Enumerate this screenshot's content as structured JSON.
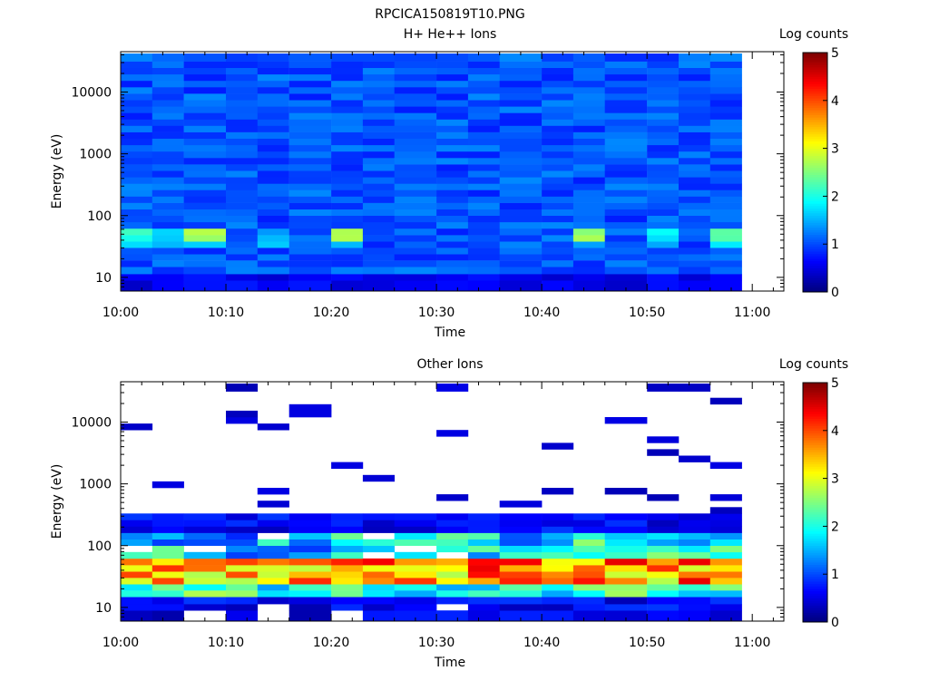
{
  "figure_title": "RPCICA150819T10.PNG",
  "chart_data": [
    {
      "type": "heatmap",
      "title": "H+ He++ Ions",
      "xlabel": "Time",
      "ylabel": "Energy (eV)",
      "y_scale": "log",
      "ylim": [
        6,
        45000
      ],
      "xlim": [
        "10:00",
        "11:03"
      ],
      "x_tick_labels": [
        "10:00",
        "10:10",
        "10:20",
        "10:30",
        "10:40",
        "10:50",
        "11:00"
      ],
      "y_tick_labels": [
        "10",
        "100",
        "1000",
        "10000"
      ],
      "time_bins": [
        "10:00",
        "10:03",
        "10:06",
        "10:10",
        "10:13",
        "10:16",
        "10:20",
        "10:23",
        "10:26",
        "10:30",
        "10:33",
        "10:36",
        "10:40",
        "10:43",
        "10:46",
        "10:50",
        "10:53",
        "10:56"
      ],
      "time_end": "10:59",
      "energy_bins_ev": [
        8,
        10,
        13,
        17,
        21,
        27,
        34,
        43,
        55,
        70,
        89,
        113,
        143,
        182,
        231,
        294,
        373,
        474,
        603,
        766,
        973,
        1236,
        1571,
        1997,
        2538,
        3225,
        4098,
        5208,
        6619,
        8412,
        10690,
        13586,
        17266,
        21943,
        27887,
        35441
      ],
      "colorbar": {
        "label": "Log counts",
        "min": 0,
        "max": 5,
        "ticks": [
          "0",
          "1",
          "2",
          "3",
          "4",
          "5"
        ]
      },
      "grid": false,
      "notes": "Mostly 0.5–1.3 log counts everywhere; bright 2–2.8 band near 40–60 eV in several time bins."
    },
    {
      "type": "heatmap",
      "title": "Other Ions",
      "xlabel": "Time",
      "ylabel": "Energy (eV)",
      "y_scale": "log",
      "ylim": [
        6,
        45000
      ],
      "xlim": [
        "10:00",
        "11:03"
      ],
      "x_tick_labels": [
        "10:00",
        "10:10",
        "10:20",
        "10:30",
        "10:40",
        "10:50",
        "11:00"
      ],
      "y_tick_labels": [
        "10",
        "100",
        "1000",
        "10000"
      ],
      "time_bins": [
        "10:00",
        "10:03",
        "10:06",
        "10:10",
        "10:13",
        "10:16",
        "10:20",
        "10:23",
        "10:26",
        "10:30",
        "10:33",
        "10:36",
        "10:40",
        "10:43",
        "10:46",
        "10:50",
        "10:53",
        "10:56"
      ],
      "time_end": "10:59",
      "energy_bins_ev": [
        8,
        10,
        13,
        17,
        21,
        27,
        34,
        43,
        55,
        70,
        89,
        113,
        143,
        182,
        231,
        294,
        373,
        474,
        603,
        766,
        973,
        1236,
        1571,
        1997,
        2538,
        3225,
        4098,
        5208,
        6619,
        8412,
        10690,
        13586,
        17266,
        21943,
        27887,
        35441
      ],
      "colorbar": {
        "label": "Log counts",
        "min": 0,
        "max": 5,
        "ticks": [
          "0",
          "1",
          "2",
          "3",
          "4",
          "5"
        ]
      },
      "grid": false,
      "notes": "Strong 3.5–4.5 log counts band around 30–60 eV; sparse single-count lines above 300 eV; empty (white) cells elsewhere."
    }
  ]
}
